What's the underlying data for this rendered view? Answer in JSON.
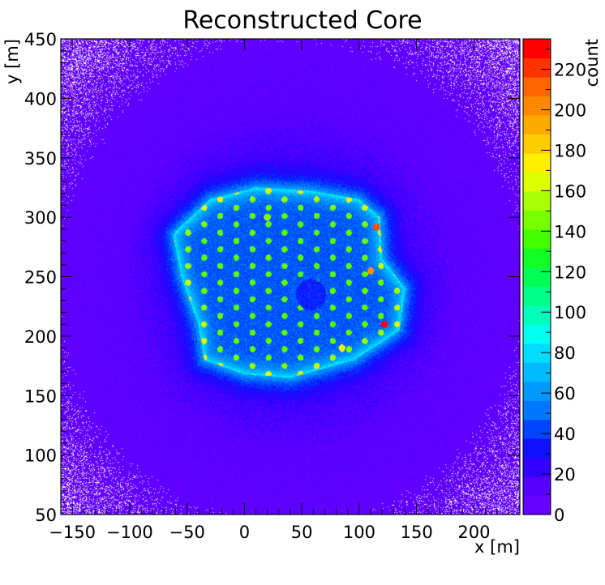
{
  "chart_data": {
    "type": "heatmap",
    "title": "Reconstructed Core",
    "xlabel": "x [m]",
    "ylabel": "y [m]",
    "zlabel": "count",
    "xlim": [
      -160,
      240
    ],
    "ylim": [
      50,
      450
    ],
    "zlim": [
      0,
      235
    ],
    "x_ticks": [
      -150,
      -100,
      -50,
      0,
      50,
      100,
      150,
      200
    ],
    "y_ticks": [
      50,
      100,
      150,
      200,
      250,
      300,
      350,
      400,
      450
    ],
    "z_ticks": [
      0,
      20,
      40,
      60,
      80,
      100,
      120,
      140,
      160,
      180,
      200,
      220
    ],
    "x_tick_labels": [
      "−150",
      "−100",
      "−50",
      "0",
      "50",
      "100",
      "150",
      "200"
    ],
    "y_tick_labels": [
      "50",
      "100",
      "150",
      "200",
      "250",
      "300",
      "350",
      "400",
      "450"
    ],
    "z_tick_labels": [
      "0",
      "20",
      "40",
      "60",
      "80",
      "100",
      "120",
      "140",
      "160",
      "180",
      "200",
      "220"
    ],
    "colormap": [
      "#6600ff",
      "#5500ff",
      "#3300ff",
      "#1111ff",
      "#0044ff",
      "#0077ff",
      "#0099ff",
      "#00bbff",
      "#00ddff",
      "#00ffee",
      "#00ffbb",
      "#00ff88",
      "#00ff55",
      "#11ff22",
      "#44ff00",
      "#77ff00",
      "#aaff00",
      "#ddff00",
      "#ffee00",
      "#ffcc00",
      "#ffaa00",
      "#ff8800",
      "#ff6600",
      "#ff3300",
      "#ff0000"
    ],
    "grid": false,
    "legend": "colorbar-right",
    "density_model": {
      "background_count": 5,
      "empty_corner_regions": true,
      "array_polygon": [
        [
          -58,
          290
        ],
        [
          -30,
          315
        ],
        [
          10,
          325
        ],
        [
          60,
          322
        ],
        [
          100,
          315
        ],
        [
          118,
          300
        ],
        [
          120,
          265
        ],
        [
          140,
          240
        ],
        [
          135,
          205
        ],
        [
          120,
          195
        ],
        [
          95,
          180
        ],
        [
          40,
          165
        ],
        [
          0,
          168
        ],
        [
          -35,
          180
        ],
        [
          -40,
          210
        ],
        [
          -55,
          250
        ],
        [
          -62,
          285
        ]
      ],
      "array_base_count": 45,
      "array_edge_count": 85,
      "halo_center": [
        40,
        245
      ],
      "halo_radius": 135,
      "station_spacing": 14,
      "station_count": 95,
      "hole_center": [
        58,
        235
      ],
      "hole_radius": 13,
      "hotspots": [
        {
          "x": 115,
          "y": 292,
          "count": 215
        },
        {
          "x": 110,
          "y": 255,
          "count": 200
        },
        {
          "x": 122,
          "y": 210,
          "count": 230
        },
        {
          "x": 20,
          "y": 300,
          "count": 150
        },
        {
          "x": 85,
          "y": 190,
          "count": 170
        }
      ]
    }
  }
}
